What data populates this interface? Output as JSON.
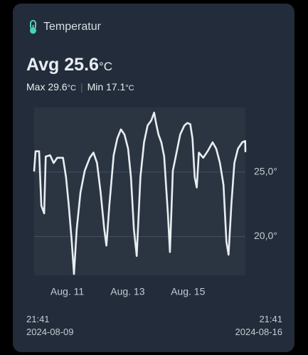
{
  "chart_data": {
    "type": "line",
    "title": "Temperatur",
    "summary": {
      "avg_label": "Avg",
      "avg": 25.6,
      "unit": "°C",
      "max_label": "Max",
      "max": 29.6,
      "min_label": "Min",
      "min": 17.1
    },
    "start_label": {
      "time": "21:41",
      "date": "2024-08-09"
    },
    "end_label": {
      "time": "21:41",
      "date": "2024-08-16"
    },
    "color": "#e9eef2",
    "x": [
      "2024-08-09T21:41",
      "2024-08-09T22:50",
      "2024-08-10T01:40",
      "2024-08-10T03:25",
      "2024-08-10T05:40",
      "2024-08-10T06:55",
      "2024-08-10T10:20",
      "2024-08-10T13:10",
      "2024-08-10T16:05",
      "2024-08-10T20:40",
      "2024-08-10T23:00",
      "2024-08-11T01:15",
      "2024-08-11T03:35",
      "2024-08-11T05:20",
      "2024-08-11T07:35",
      "2024-08-11T10:30",
      "2024-08-11T13:55",
      "2024-08-11T17:55",
      "2024-08-11T20:50",
      "2024-08-11T23:40",
      "2024-08-12T02:35",
      "2024-08-12T05:25",
      "2024-08-12T07:10",
      "2024-08-12T09:30",
      "2024-08-12T12:55",
      "2024-08-12T15:50",
      "2024-08-12T18:40",
      "2024-08-12T21:30",
      "2024-08-13T00:25",
      "2024-08-13T02:40",
      "2024-08-13T05:00",
      "2024-08-13T07:15",
      "2024-08-13T10:10",
      "2024-08-13T13:05",
      "2024-08-13T15:55",
      "2024-08-13T18:50",
      "2024-08-13T21:05",
      "2024-08-13T22:50",
      "2024-08-14T00:35",
      "2024-08-14T02:50",
      "2024-08-14T05:05",
      "2024-08-14T08:00",
      "2024-08-14T09:40",
      "2024-08-14T12:00",
      "2024-08-14T14:55",
      "2024-08-14T17:50",
      "2024-08-14T21:10",
      "2024-08-14T23:30",
      "2024-08-15T01:50",
      "2024-08-15T03:35",
      "2024-08-15T05:20",
      "2024-08-15T07:00",
      "2024-08-15T08:40",
      "2024-08-15T12:10",
      "2024-08-15T15:35",
      "2024-08-15T19:35",
      "2024-08-15T22:30",
      "2024-08-16T01:25",
      "2024-08-16T04:15",
      "2024-08-16T06:35",
      "2024-08-16T08:15",
      "2024-08-16T10:35",
      "2024-08-16T12:55",
      "2024-08-16T15:45",
      "2024-08-16T19:10",
      "2024-08-16T21:30",
      "2024-08-16T21:41"
    ],
    "values": [
      25.1,
      26.6,
      26.6,
      22.4,
      21.8,
      26.2,
      26.3,
      25.7,
      26.1,
      26.1,
      24.6,
      22.4,
      19.6,
      17.1,
      20.6,
      23.4,
      25.1,
      26.1,
      26.5,
      25.7,
      23.4,
      20.6,
      19.3,
      22.4,
      26.3,
      27.6,
      28.3,
      27.9,
      26.8,
      24.6,
      20.6,
      18.5,
      24.6,
      27.3,
      28.6,
      29.0,
      29.6,
      28.7,
      27.9,
      27.3,
      26.2,
      21.8,
      18.8,
      25.1,
      26.5,
      27.9,
      28.6,
      28.8,
      28.7,
      27.6,
      24.6,
      23.8,
      26.5,
      26.1,
      26.6,
      27.3,
      26.8,
      25.7,
      24.0,
      19.6,
      18.6,
      22.6,
      25.7,
      26.8,
      27.3,
      27.4,
      26.6
    ],
    "xlim": [
      "2024-08-09T21:41",
      "2024-08-16T21:41"
    ],
    "xticks": [
      {
        "value": "2024-08-11T00:00",
        "label": "Aug. 11"
      },
      {
        "value": "2024-08-13T00:00",
        "label": "Aug. 13"
      },
      {
        "value": "2024-08-15T00:00",
        "label": "Aug. 15"
      }
    ],
    "ylim": [
      17,
      30
    ],
    "yticks": [
      {
        "value": 20,
        "label": "20,0°"
      },
      {
        "value": 25,
        "label": "25,0°"
      }
    ],
    "grid": true
  }
}
